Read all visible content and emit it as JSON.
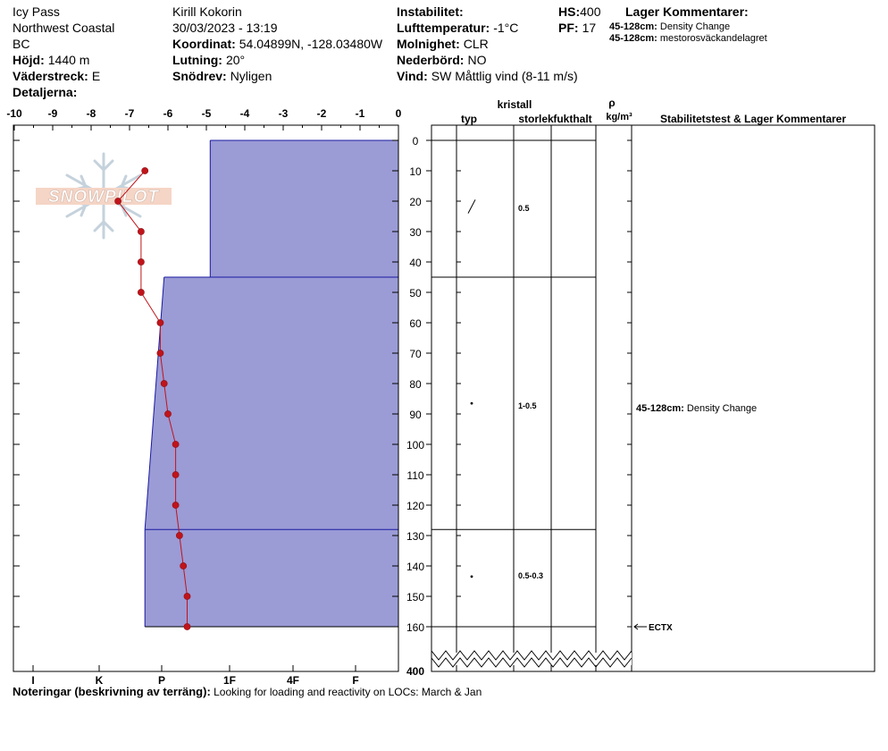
{
  "header": {
    "location_name": "Icy Pass",
    "region": "Northwest Coastal",
    "province": "BC",
    "elevation_label": "Höjd:",
    "elevation_value": "1440 m",
    "aspect_label": "Väderstreck:",
    "aspect_value": "E",
    "details_label": "Detaljerna:",
    "observer": "Kirill Kokorin",
    "datetime": "30/03/2023 - 13:19",
    "coord_label": "Koordinat:",
    "coord_value": "54.04899N, -128.03480W",
    "slope_label": "Lutning:",
    "slope_value": "20°",
    "drift_label": "Snödrev:",
    "drift_value": "Nyligen",
    "instability_label": "Instabilitet:",
    "air_temp_label": "Lufttemperatur:",
    "air_temp_value": "-1°C",
    "sky_label": "Molnighet:",
    "sky_value": "CLR",
    "precip_label": "Nederbörd:",
    "precip_value": "NO",
    "wind_label": "Vind:",
    "wind_value": "SW  Måttlig vind (8-11 m/s)",
    "hs_label": "HS:",
    "hs_value": "400",
    "pf_label": "PF:",
    "pf_value": "17",
    "layer_comments_title": "Lager Kommentarer:",
    "layer_comments": [
      {
        "range": "45-128cm:",
        "text": "Density Change"
      },
      {
        "range": "45-128cm:",
        "text": "mestorosväckandelagret"
      }
    ]
  },
  "watermark_text": "SNOWPILOT",
  "columns": {
    "crystal": "kristall",
    "type": "typ",
    "size": "storlek",
    "moisture": "fukthalt",
    "rho": "ρ",
    "rho_unit": "kg/m³",
    "stability": "Stabilitetstest & Lager Kommentarer"
  },
  "hardness_labels": [
    "I",
    "K",
    "P",
    "1F",
    "4F",
    "F"
  ],
  "temp_ticks": [
    "-10",
    "-9",
    "-8",
    "-7",
    "-6",
    "-5",
    "-4",
    "-3",
    "-2",
    "-1",
    "0"
  ],
  "depth_ticks": [
    "0",
    "10",
    "20",
    "30",
    "40",
    "50",
    "60",
    "70",
    "80",
    "90",
    "100",
    "110",
    "120",
    "130",
    "140",
    "150",
    "160"
  ],
  "bottom_depth_label": "400",
  "crystal_sizes": [
    {
      "depth": 22,
      "text": "0.5"
    },
    {
      "depth": 87,
      "text": "1-0.5"
    },
    {
      "depth": 143,
      "text": "0.5-0.3"
    }
  ],
  "stability_comments": [
    {
      "depth": 88,
      "range": "45-128cm:",
      "text": "Density Change"
    }
  ],
  "stability_test": {
    "depth": 160,
    "text": "ECTX"
  },
  "notes": {
    "label": "Noteringar (beskrivning av terräng):",
    "text": "Looking for loading and reactivity on LOCs: March & Jan"
  },
  "chart_data": {
    "type": "line",
    "xlabel": "",
    "ylabel": "",
    "temperature_xlim": [
      -10,
      0
    ],
    "depth_ylim": [
      0,
      160
    ],
    "temperature_profile": {
      "depth_cm": [
        10,
        20,
        30,
        40,
        50,
        60,
        70,
        80,
        90,
        100,
        110,
        120,
        130,
        140,
        150,
        160
      ],
      "temp_c": [
        -6.6,
        -7.3,
        -6.7,
        -6.7,
        -6.7,
        -6.2,
        -6.2,
        -6.1,
        -6.0,
        -5.8,
        -5.8,
        -5.8,
        -5.7,
        -5.6,
        -5.5,
        -5.5
      ]
    },
    "hardness_layers": [
      {
        "top_cm": 0,
        "bottom_cm": 45,
        "temp_extent_top": -4.9,
        "temp_extent_bottom": -4.9
      },
      {
        "top_cm": 45,
        "bottom_cm": 128,
        "temp_extent_top": -6.1,
        "temp_extent_bottom": -6.6
      },
      {
        "top_cm": 128,
        "bottom_cm": 160,
        "temp_extent_top": -6.6,
        "temp_extent_bottom": -6.6
      }
    ],
    "layer_boundaries_cm": [
      45,
      128,
      160
    ]
  }
}
